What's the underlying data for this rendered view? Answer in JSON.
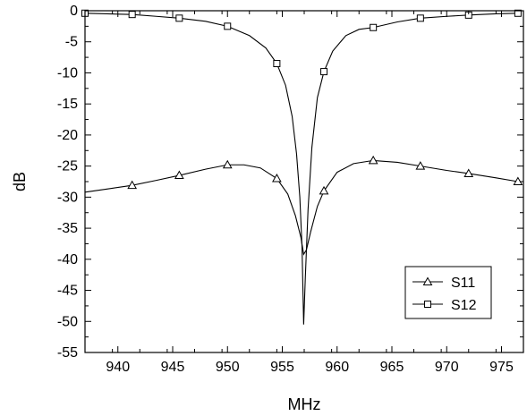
{
  "chart_data": {
    "type": "line",
    "title": "",
    "xlabel": "MHz",
    "ylabel": "dB",
    "xlim": [
      937,
      977
    ],
    "ylim": [
      -55,
      0
    ],
    "xticks": [
      "940",
      "945",
      "950",
      "955",
      "960",
      "965",
      "970",
      "975"
    ],
    "yticks": [
      "0",
      "-5",
      "-10",
      "-15",
      "-20",
      "-25",
      "-30",
      "-35",
      "-40",
      "-45",
      "-50",
      "-55"
    ],
    "grid": false,
    "legend_position": "bottom-right",
    "series": [
      {
        "name": "S11",
        "marker": "triangle",
        "color": "#000000",
        "x": [
          937,
          939,
          941.3,
          943.5,
          945.6,
          948,
          950,
          951.5,
          953,
          954.5,
          955.5,
          956.2,
          956.7,
          956.95,
          957.2,
          957.6,
          958.2,
          958.8,
          960,
          961.5,
          963.3,
          965.5,
          967.6,
          970,
          972,
          974.5,
          976.5
        ],
        "y": [
          -29.2,
          -28.7,
          -28.1,
          -27.3,
          -26.5,
          -25.5,
          -24.8,
          -24.8,
          -25.3,
          -27.0,
          -29.5,
          -33.0,
          -36.5,
          -39.2,
          -38.5,
          -35.5,
          -31.5,
          -29.0,
          -26.0,
          -24.6,
          -24.1,
          -24.4,
          -25.0,
          -25.7,
          -26.2,
          -26.9,
          -27.5
        ],
        "markers_x": [
          941.3,
          945.6,
          950,
          954.5,
          958.8,
          963.3,
          967.6,
          972,
          976.5
        ]
      },
      {
        "name": "S12",
        "marker": "square",
        "color": "#000000",
        "x": [
          937,
          939,
          941.3,
          943.5,
          945.6,
          948,
          950,
          952,
          953.5,
          954.5,
          955.3,
          955.9,
          956.3,
          956.6,
          956.8,
          956.95,
          957.1,
          957.35,
          957.7,
          958.2,
          958.8,
          959.6,
          960.8,
          962,
          963.3,
          965.5,
          967.6,
          970,
          972,
          974.5,
          976.5
        ],
        "y": [
          -0.4,
          -0.5,
          -0.6,
          -0.9,
          -1.2,
          -1.7,
          -2.5,
          -4.0,
          -6.0,
          -8.5,
          -12.0,
          -17.0,
          -23.0,
          -30.0,
          -38.0,
          -50.5,
          -43.0,
          -32.0,
          -22.0,
          -14.0,
          -9.8,
          -6.5,
          -4.0,
          -3.0,
          -2.7,
          -1.8,
          -1.2,
          -0.9,
          -0.7,
          -0.5,
          -0.4
        ],
        "markers_x": [
          937,
          941.3,
          945.6,
          950,
          954.5,
          958.8,
          963.3,
          967.6,
          972,
          976.5
        ]
      }
    ]
  }
}
